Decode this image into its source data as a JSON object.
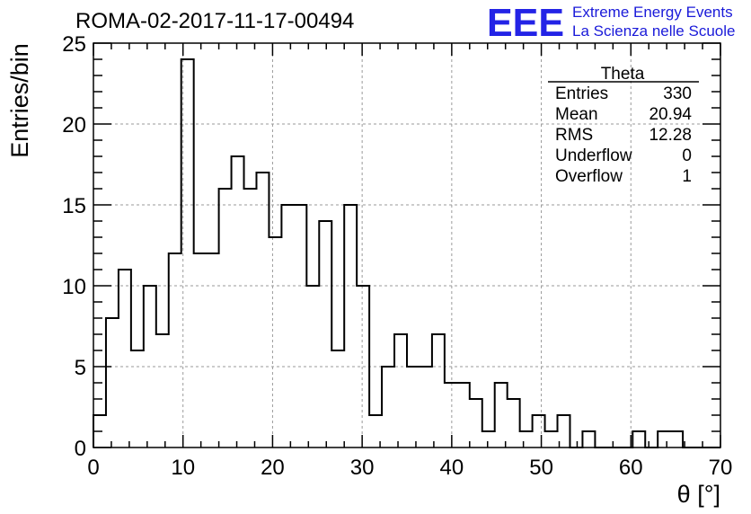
{
  "title": "ROMA-02-2017-11-17-00494",
  "logo": {
    "mark": "EEE",
    "line1": "Extreme Energy Events",
    "line2": "La Scienza nelle Scuole"
  },
  "stats": {
    "name": "Theta",
    "rows": [
      {
        "label": "Entries",
        "value": "330"
      },
      {
        "label": "Mean",
        "value": "20.94"
      },
      {
        "label": "RMS",
        "value": "12.28"
      },
      {
        "label": "Underflow",
        "value": "0"
      },
      {
        "label": "Overflow",
        "value": "1"
      }
    ]
  },
  "chart_data": {
    "type": "bar",
    "style": "step-histogram",
    "title": "ROMA-02-2017-11-17-00494",
    "xlabel": "θ [°]",
    "ylabel": "Entries/bin",
    "xlim": [
      0,
      70
    ],
    "ylim": [
      0,
      25
    ],
    "grid": true,
    "bin_width": 1.4,
    "xticks": [
      0,
      10,
      20,
      30,
      40,
      50,
      60,
      70
    ],
    "yticks": [
      0,
      5,
      10,
      15,
      20,
      25
    ],
    "values": [
      2,
      8,
      11,
      6,
      10,
      7,
      12,
      24,
      12,
      12,
      16,
      18,
      16,
      17,
      13,
      15,
      15,
      10,
      14,
      6,
      15,
      10,
      2,
      5,
      7,
      5,
      5,
      7,
      4,
      4,
      3,
      1,
      4,
      3,
      1,
      2,
      1,
      2,
      0,
      1,
      0,
      0,
      0,
      1,
      0,
      1,
      1,
      0,
      0,
      0
    ],
    "colors": {
      "line": "#000000",
      "grid": "#9a9a9a",
      "logo": "#2323e6"
    }
  }
}
